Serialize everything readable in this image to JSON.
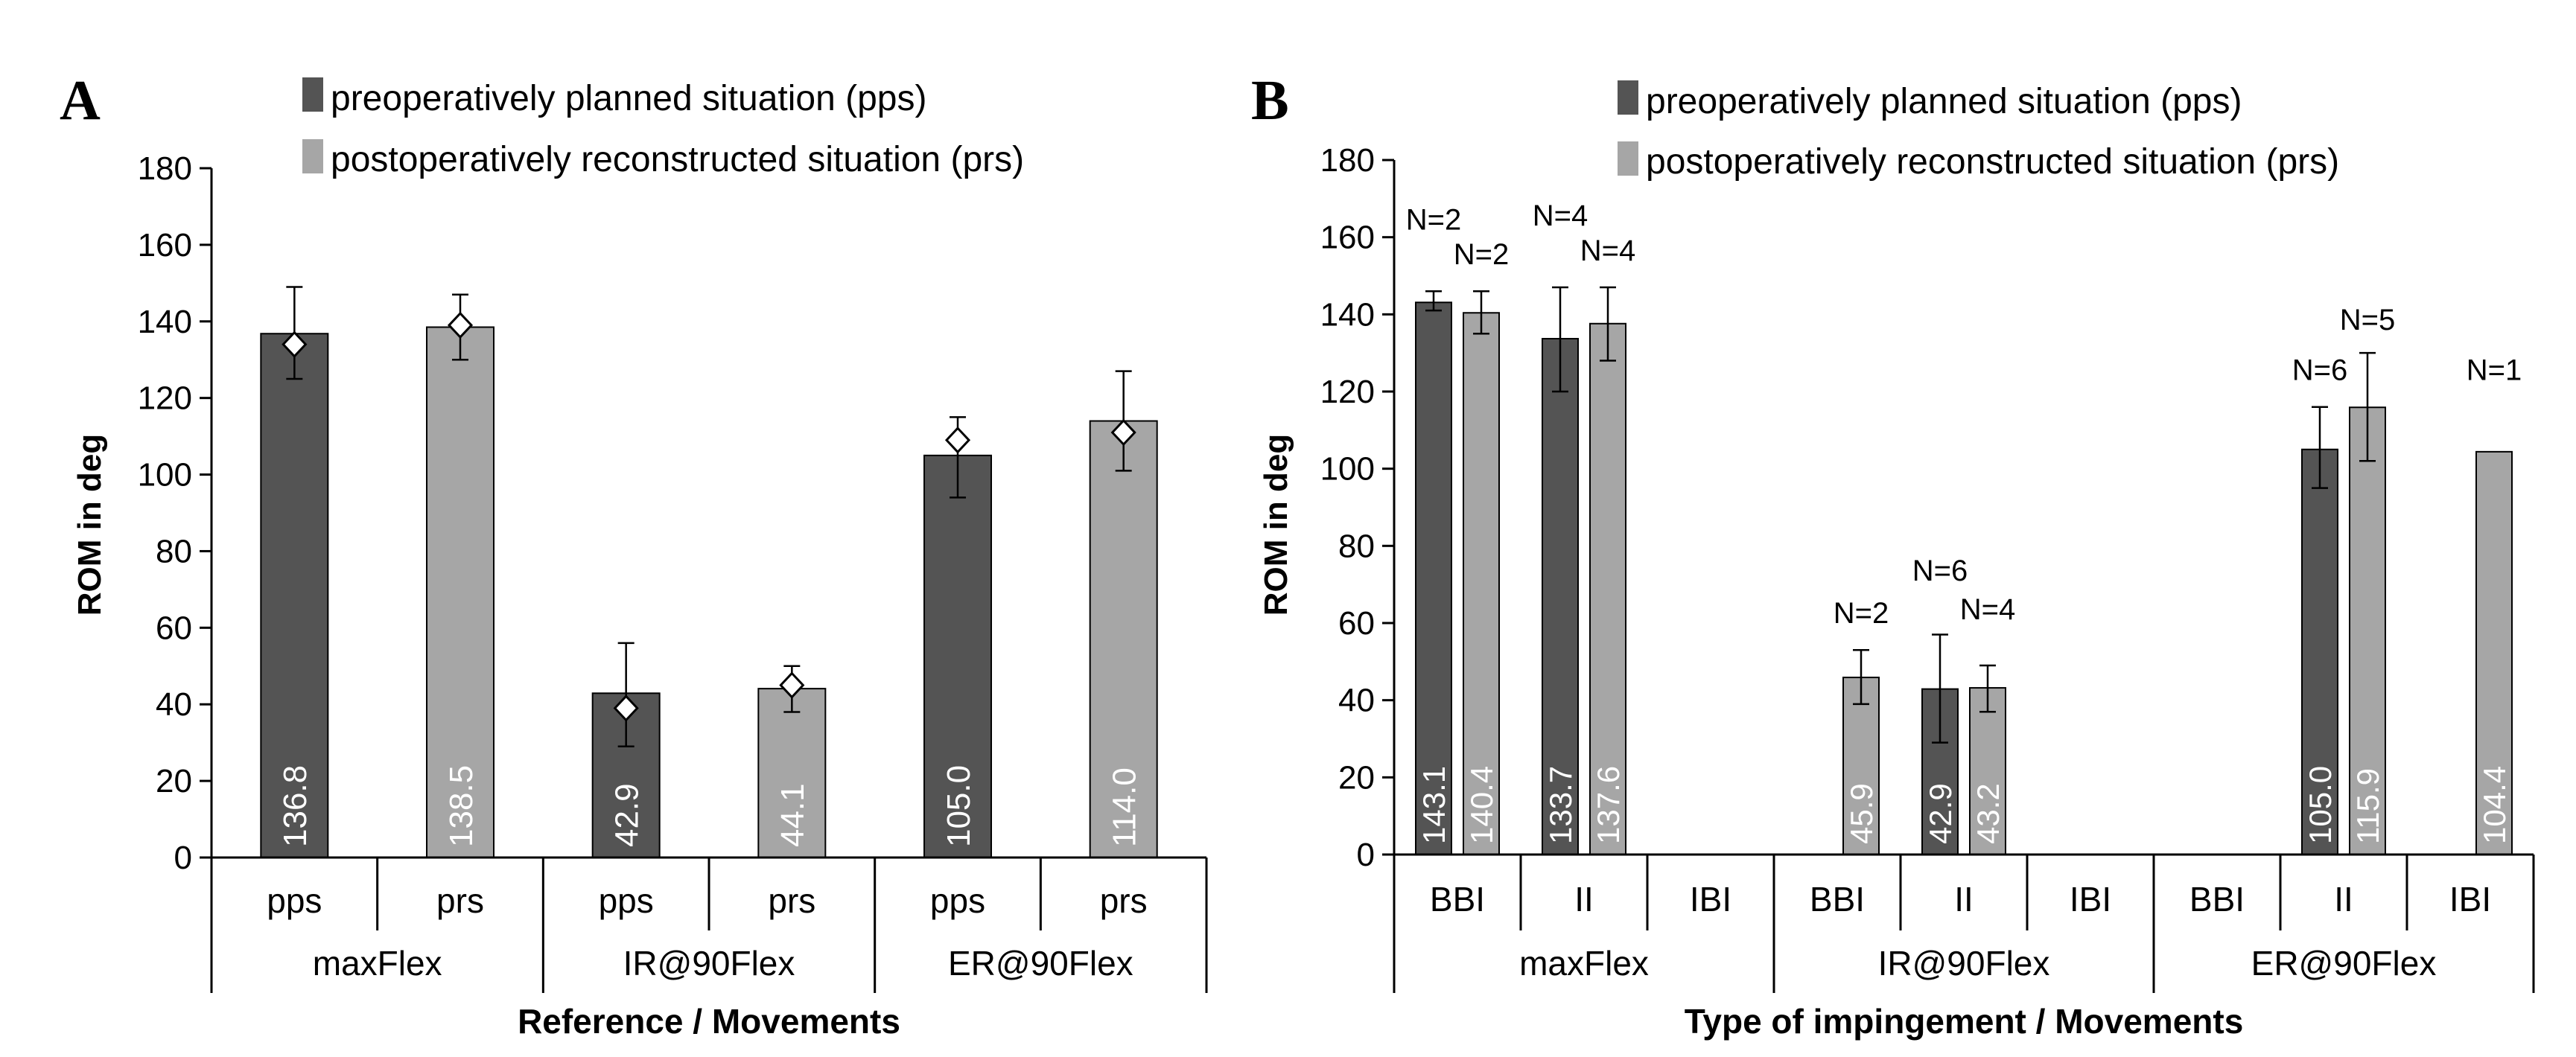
{
  "colors": {
    "pps": "#545454",
    "prs": "#a6a6a6",
    "axis": "#000000",
    "label_inside": "#ffffff",
    "marker_fill": "#ffffff"
  },
  "chart_data": [
    {
      "panel": "A",
      "type": "bar",
      "legend": [
        "preoperatively planned situation (pps)",
        "postoperatively reconstructed situation (prs)"
      ],
      "ylabel": "ROM in deg",
      "xlabel": "Reference / Movements",
      "ylim": [
        0,
        180
      ],
      "yticks": [
        "0",
        "20",
        "40",
        "60",
        "80",
        "100",
        "120",
        "140",
        "160",
        "180"
      ],
      "groups": [
        "maxFlex",
        "IR@90Flex",
        "ER@90Flex"
      ],
      "categories": [
        "pps",
        "prs",
        "pps",
        "prs",
        "pps",
        "prs"
      ],
      "bars": [
        {
          "group": 0,
          "slot": 0,
          "series": "pps",
          "value": 136.8,
          "label": "136.8",
          "err_low": 125,
          "err_high": 149,
          "marker": 134
        },
        {
          "group": 0,
          "slot": 1,
          "series": "prs",
          "value": 138.5,
          "label": "138.5",
          "err_low": 130,
          "err_high": 147,
          "marker": 139
        },
        {
          "group": 1,
          "slot": 0,
          "series": "pps",
          "value": 42.9,
          "label": "42.9",
          "err_low": 29,
          "err_high": 56,
          "marker": 39
        },
        {
          "group": 1,
          "slot": 1,
          "series": "prs",
          "value": 44.1,
          "label": "44.1",
          "err_low": 38,
          "err_high": 50,
          "marker": 45
        },
        {
          "group": 2,
          "slot": 0,
          "series": "pps",
          "value": 105.0,
          "label": "105.0",
          "err_low": 94,
          "err_high": 115,
          "marker": 109
        },
        {
          "group": 2,
          "slot": 1,
          "series": "prs",
          "value": 114.0,
          "label": "114.0",
          "err_low": 101,
          "err_high": 127,
          "marker": 111
        }
      ]
    },
    {
      "panel": "B",
      "type": "bar",
      "legend": [
        "preoperatively planned situation (pps)",
        "postoperatively reconstructed situation (prs)"
      ],
      "ylabel": "ROM in deg",
      "xlabel": "Type of impingement / Movements",
      "ylim": [
        0,
        180
      ],
      "yticks": [
        "0",
        "20",
        "40",
        "60",
        "80",
        "100",
        "120",
        "140",
        "160",
        "180"
      ],
      "groups": [
        "maxFlex",
        "IR@90Flex",
        "ER@90Flex"
      ],
      "categories": [
        "BBI",
        "II",
        "IBI",
        "BBI",
        "II",
        "IBI",
        "BBI",
        "II",
        "IBI"
      ],
      "bars": [
        {
          "cat": 0,
          "series": "pps",
          "value": 143.1,
          "label": "143.1",
          "err_low": 141,
          "err_high": 146,
          "n": "N=2",
          "n_y": 162
        },
        {
          "cat": 0,
          "series": "prs",
          "value": 140.4,
          "label": "140.4",
          "err_low": 135,
          "err_high": 146,
          "n": "N=2",
          "n_y": 153
        },
        {
          "cat": 1,
          "series": "pps",
          "value": 133.7,
          "label": "133.7",
          "err_low": 120,
          "err_high": 147,
          "n": "N=4",
          "n_y": 163
        },
        {
          "cat": 1,
          "series": "prs",
          "value": 137.6,
          "label": "137.6",
          "err_low": 128,
          "err_high": 147,
          "n": "N=4",
          "n_y": 154
        },
        {
          "cat": 4,
          "series": "pps",
          "value": 42.9,
          "label": "42.9",
          "err_low": 29,
          "err_high": 57,
          "n": "N=6",
          "n_y": 71
        },
        {
          "cat": 3,
          "series": "prs",
          "value": 45.9,
          "label": "45.9",
          "err_low": 39,
          "err_high": 53,
          "n": "N=2",
          "n_y": 60
        },
        {
          "cat": 4,
          "series": "prs",
          "value": 43.2,
          "label": "43.2",
          "err_low": 37,
          "err_high": 49,
          "n": "N=4",
          "n_y": 61
        },
        {
          "cat": 7,
          "series": "pps",
          "value": 105.0,
          "label": "105.0",
          "err_low": 95,
          "err_high": 116,
          "n": "N=6",
          "n_y": 123
        },
        {
          "cat": 7,
          "series": "prs",
          "value": 115.9,
          "label": "115.9",
          "err_low": 102,
          "err_high": 130,
          "n": "N=5",
          "n_y": 136
        },
        {
          "cat": 8,
          "series": "prs",
          "value": 104.4,
          "label": "104.4",
          "err_low": null,
          "err_high": null,
          "n": "N=1",
          "n_y": 123
        }
      ]
    }
  ]
}
